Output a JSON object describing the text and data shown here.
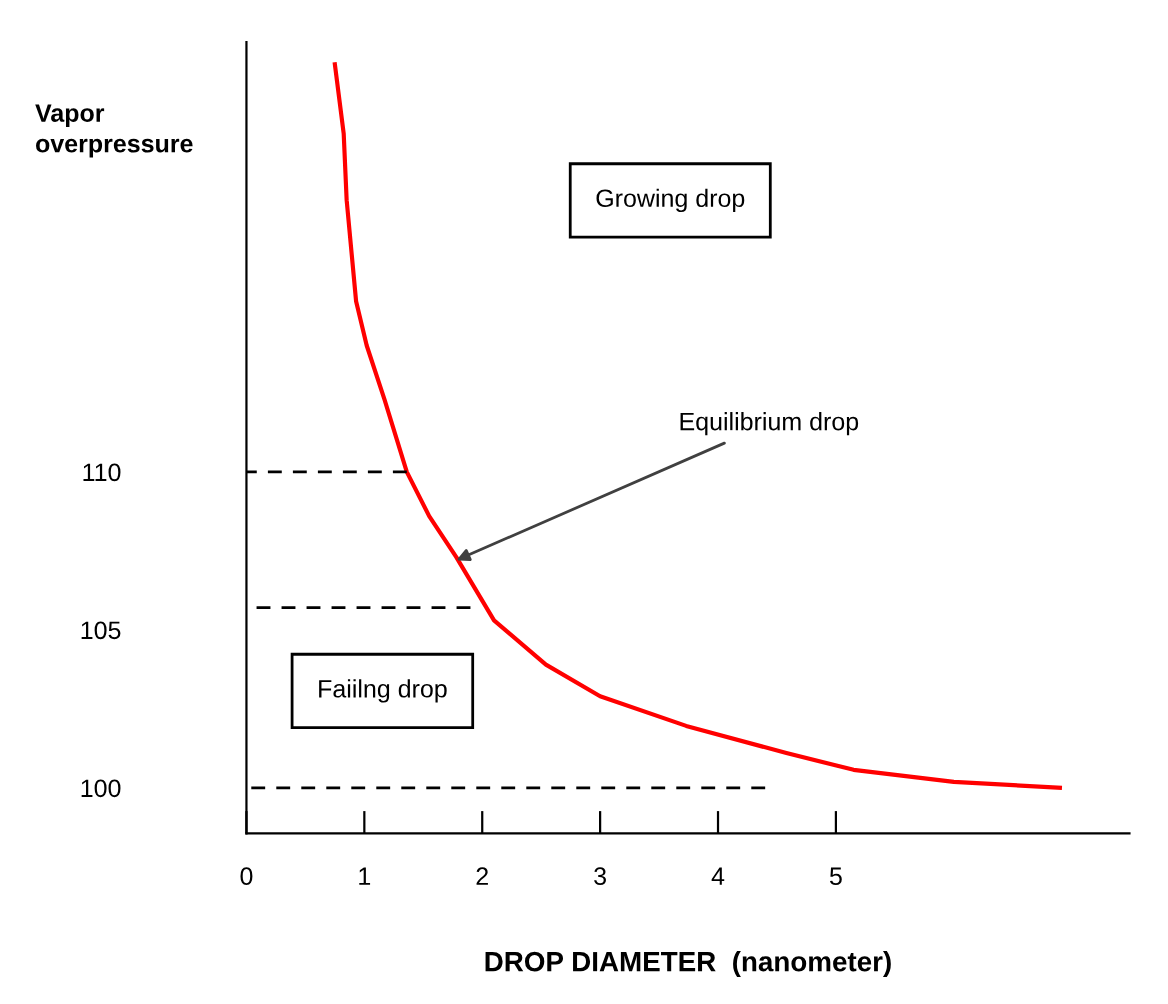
{
  "chart_data": {
    "type": "line",
    "xlabel": "DROP DIAMETER  (nanometer)",
    "ylabel": "Vapor\noverpressure",
    "xlim": [
      0,
      7.49
    ],
    "ylim": [
      98.56,
      123.6
    ],
    "xticks": [
      0,
      1,
      2,
      3,
      4,
      5
    ],
    "yticks": [
      100,
      105,
      110
    ],
    "grid": false,
    "marker": "none",
    "series": [
      {
        "color": "#ff0000",
        "line_style": "solid",
        "x": [
          0.75,
          0.825,
          0.85,
          0.93,
          1.02,
          1.17,
          1.36,
          1.55,
          1.78,
          2.1,
          2.54,
          3.0,
          3.73,
          4.58,
          5.15,
          6.0,
          6.9
        ],
        "values": [
          122.9,
          120.7,
          118.6,
          115.4,
          114.0,
          112.3,
          110.0,
          108.6,
          107.3,
          105.3,
          103.9,
          102.9,
          101.96,
          101.1,
          100.57,
          100.19,
          100.0
        ]
      },
      {
        "color": "#000000",
        "line_style": "dashed",
        "x": [
          1.36,
          0
        ],
        "values": [
          110,
          110
        ]
      },
      {
        "color": "#000000",
        "line_style": "dashed",
        "x": [
          1.9,
          0
        ],
        "values": [
          105.7,
          105.7
        ]
      },
      {
        "color": "#000000",
        "line_style": "dashed",
        "x": [
          4.4,
          0
        ],
        "values": [
          100,
          100
        ]
      }
    ],
    "annotations": [
      "Growing drop",
      "Faiilng drop",
      {
        "text": "Equilibrium drop",
        "x": 1.78,
        "y": 107.2
      }
    ]
  }
}
